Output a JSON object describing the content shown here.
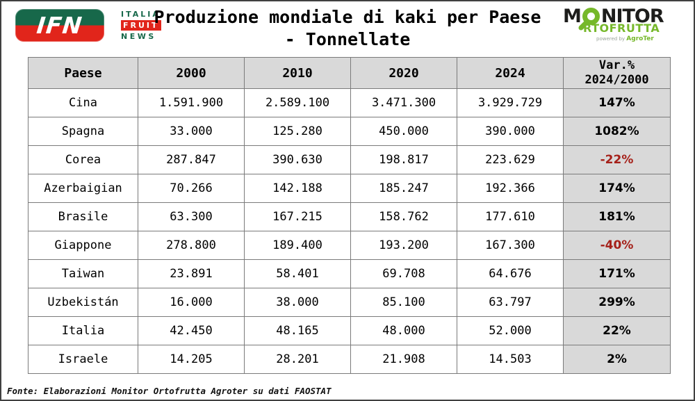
{
  "header": {
    "title_line1": "Produzione mondiale di kaki per Paese",
    "title_line2": "- Tonnellate",
    "ifn_logo": {
      "acronym": "IFN",
      "word1": "ITALIA",
      "word2": "FRUIT",
      "word3": "NEWS"
    },
    "monitor_logo": {
      "line1_prefix": "M",
      "line1_suffix": "NITOR",
      "line2": "RTOFRUTTA",
      "powered": "powered by ",
      "brand": "AgroTer"
    }
  },
  "table": {
    "columns": [
      "Paese",
      "2000",
      "2010",
      "2020",
      "2024"
    ],
    "var_column": {
      "line1": "Var.%",
      "line2": "2024/2000"
    },
    "rows": [
      {
        "country": "Cina",
        "y2000": "1.591.900",
        "y2010": "2.589.100",
        "y2020": "3.471.300",
        "y2024": "3.929.729",
        "var_pct": "147%",
        "negative": false
      },
      {
        "country": "Spagna",
        "y2000": "33.000",
        "y2010": "125.280",
        "y2020": "450.000",
        "y2024": "390.000",
        "var_pct": "1082%",
        "negative": false
      },
      {
        "country": "Corea",
        "y2000": "287.847",
        "y2010": "390.630",
        "y2020": "198.817",
        "y2024": "223.629",
        "var_pct": "-22%",
        "negative": true
      },
      {
        "country": "Azerbaigian",
        "y2000": "70.266",
        "y2010": "142.188",
        "y2020": "185.247",
        "y2024": "192.366",
        "var_pct": "174%",
        "negative": false
      },
      {
        "country": "Brasile",
        "y2000": "63.300",
        "y2010": "167.215",
        "y2020": "158.762",
        "y2024": "177.610",
        "var_pct": "181%",
        "negative": false
      },
      {
        "country": "Giappone",
        "y2000": "278.800",
        "y2010": "189.400",
        "y2020": "193.200",
        "y2024": "167.300",
        "var_pct": "-40%",
        "negative": true
      },
      {
        "country": "Taiwan",
        "y2000": "23.891",
        "y2010": "58.401",
        "y2020": "69.708",
        "y2024": "64.676",
        "var_pct": "171%",
        "negative": false
      },
      {
        "country": "Uzbekistán",
        "y2000": "16.000",
        "y2010": "38.000",
        "y2020": "85.100",
        "y2024": "63.797",
        "var_pct": "299%",
        "negative": false
      },
      {
        "country": "Italia",
        "y2000": "42.450",
        "y2010": "48.165",
        "y2020": "48.000",
        "y2024": "52.000",
        "var_pct": "22%",
        "negative": false
      },
      {
        "country": "Israele",
        "y2000": "14.205",
        "y2010": "28.201",
        "y2020": "21.908",
        "y2024": "14.503",
        "var_pct": "2%",
        "negative": false
      }
    ]
  },
  "footer": {
    "source": "Fonte: Elaborazioni Monitor Ortofrutta Agroter su dati FAOSTAT"
  },
  "colors": {
    "header_bg": "#d9d9d9",
    "var_col_bg": "#d9d9d9",
    "negative_text": "#a52019",
    "ifn_green": "#17684a",
    "ifn_red": "#e1251b",
    "monitor_green": "#76b82a",
    "border": "#7a7a7a"
  },
  "chart_data": {
    "type": "table",
    "title": "Produzione mondiale di kaki per Paese - Tonnellate",
    "categories": [
      "Cina",
      "Spagna",
      "Corea",
      "Azerbaigian",
      "Brasile",
      "Giappone",
      "Taiwan",
      "Uzbekistán",
      "Italia",
      "Israele"
    ],
    "series": [
      {
        "name": "2000",
        "values": [
          1591900,
          33000,
          287847,
          70266,
          63300,
          278800,
          23891,
          16000,
          42450,
          14205
        ]
      },
      {
        "name": "2010",
        "values": [
          2589100,
          125280,
          390630,
          142188,
          167215,
          189400,
          58401,
          38000,
          48165,
          28201
        ]
      },
      {
        "name": "2020",
        "values": [
          3471300,
          450000,
          198817,
          185247,
          158762,
          193200,
          69708,
          85100,
          48000,
          21908
        ]
      },
      {
        "name": "2024",
        "values": [
          3929729,
          390000,
          223629,
          192366,
          177610,
          167300,
          64676,
          63797,
          52000,
          14503
        ]
      },
      {
        "name": "Var.% 2024/2000",
        "values": [
          147,
          1082,
          -22,
          174,
          181,
          -40,
          171,
          299,
          22,
          2
        ]
      }
    ],
    "unit": "tonnellate",
    "source_note": "Fonte: Elaborazioni Monitor Ortofrutta Agroter su dati FAOSTAT"
  }
}
